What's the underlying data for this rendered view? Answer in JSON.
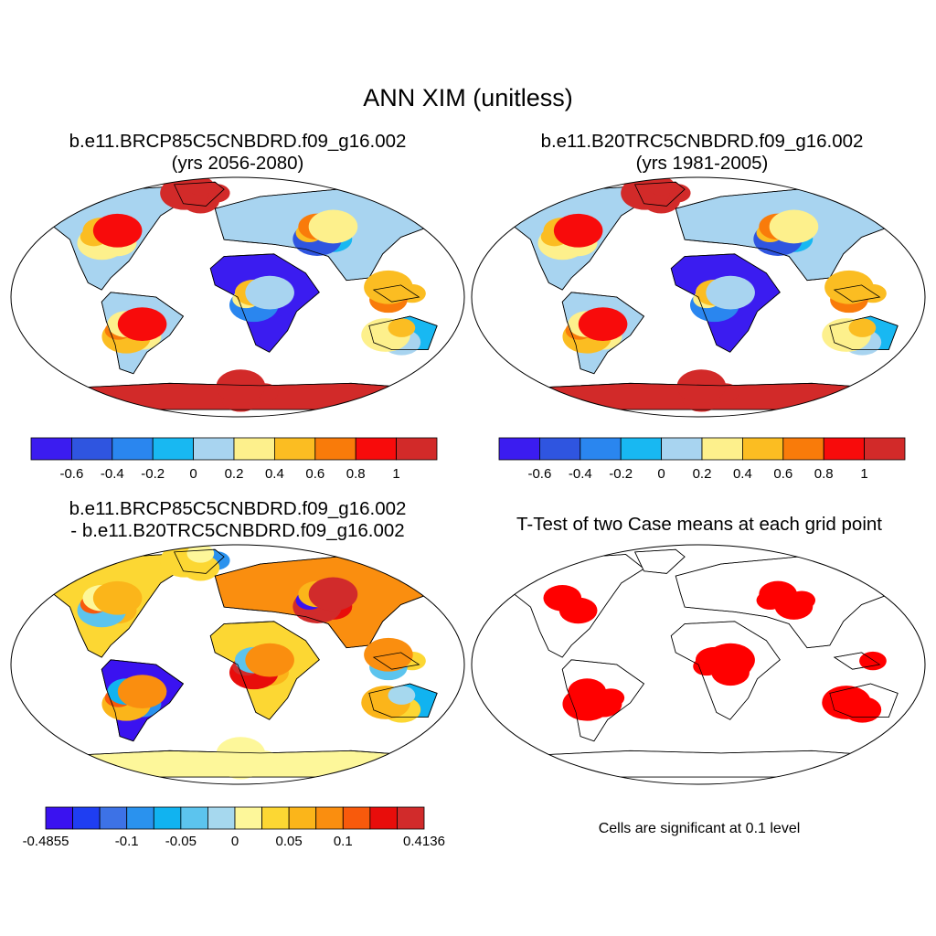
{
  "title": "ANN XIM (unitless)",
  "panels": [
    {
      "title_line1": "b.e11.BRCP85C5CNBDRD.f09_g16.002",
      "title_line2": "(yrs 2056-2080)"
    },
    {
      "title_line1": "b.e11.B20TRC5CNBDRD.f09_g16.002",
      "title_line2": "(yrs 1981-2005)"
    },
    {
      "title_line1": "b.e11.BRCP85C5CNBDRD.f09_g16.002",
      "title_line2": "- b.e11.B20TRC5CNBDRD.f09_g16.002"
    },
    {
      "title_line1": "T-Test of two Case means at each grid point",
      "title_line2": ""
    }
  ],
  "colorbar_main": {
    "colors": [
      "#3b1cf0",
      "#2f55e0",
      "#2a86ef",
      "#18b8f2",
      "#a8d4f0",
      "#fdf08c",
      "#fbbd22",
      "#f97b0a",
      "#f80b0b",
      "#d22a29"
    ],
    "tick_labels": [
      "-0.6",
      "-0.4",
      "-0.2",
      "0",
      "0.2",
      "0.4",
      "0.6",
      "0.8",
      "1"
    ]
  },
  "colorbar_diff": {
    "colors": [
      "#3a12f0",
      "#1f3ef2",
      "#3d72e6",
      "#2a92ee",
      "#11b3f0",
      "#5cc4ee",
      "#a6d8ee",
      "#fdf79a",
      "#fcd733",
      "#fbb51a",
      "#fa8e0f",
      "#f85a0c",
      "#e80d0b",
      "#d12b2b"
    ],
    "tick_labels": [
      "-0.4855",
      "-0.1",
      "-0.05",
      "0",
      "0.05",
      "0.1",
      "0.4136"
    ]
  },
  "significance_color": "#ff0000",
  "significance_note": "Cells are significant at 0.1 level"
}
